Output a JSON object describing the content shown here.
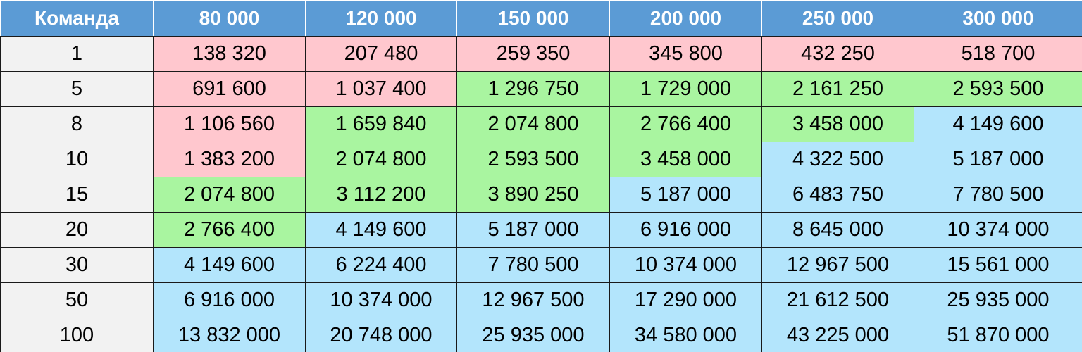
{
  "header": {
    "label": "Команда",
    "columns": [
      "80 000",
      "120 000",
      "150 000",
      "200 000",
      "250 000",
      "300 000"
    ]
  },
  "colors": {
    "header": "#5b9bd5",
    "row_label": "#f2f2f2",
    "red": "#ffc7ce",
    "green": "#a9f5a0",
    "blue": "#b3e5fc"
  },
  "rows": [
    {
      "label": "1",
      "cells": [
        "138 320",
        "207 480",
        "259 350",
        "345 800",
        "432 250",
        "518 700"
      ],
      "bands": [
        "red",
        "red",
        "red",
        "red",
        "red",
        "red"
      ]
    },
    {
      "label": "5",
      "cells": [
        "691 600",
        "1 037 400",
        "1 296 750",
        "1 729 000",
        "2 161 250",
        "2 593 500"
      ],
      "bands": [
        "red",
        "red",
        "green",
        "green",
        "green",
        "green"
      ]
    },
    {
      "label": "8",
      "cells": [
        "1 106 560",
        "1 659 840",
        "2 074 800",
        "2 766 400",
        "3 458 000",
        "4 149 600"
      ],
      "bands": [
        "red",
        "green",
        "green",
        "green",
        "green",
        "blue"
      ]
    },
    {
      "label": "10",
      "cells": [
        "1 383 200",
        "2 074 800",
        "2 593 500",
        "3 458 000",
        "4 322 500",
        "5 187 000"
      ],
      "bands": [
        "red",
        "green",
        "green",
        "green",
        "blue",
        "blue"
      ]
    },
    {
      "label": "15",
      "cells": [
        "2 074 800",
        "3 112 200",
        "3 890 250",
        "5 187 000",
        "6 483 750",
        "7 780 500"
      ],
      "bands": [
        "green",
        "green",
        "green",
        "blue",
        "blue",
        "blue"
      ]
    },
    {
      "label": "20",
      "cells": [
        "2 766 400",
        "4 149 600",
        "5 187 000",
        "6 916 000",
        "8 645 000",
        "10 374 000"
      ],
      "bands": [
        "green",
        "blue",
        "blue",
        "blue",
        "blue",
        "blue"
      ]
    },
    {
      "label": "30",
      "cells": [
        "4 149 600",
        "6 224 400",
        "7 780 500",
        "10 374 000",
        "12 967 500",
        "15 561 000"
      ],
      "bands": [
        "blue",
        "blue",
        "blue",
        "blue",
        "blue",
        "blue"
      ]
    },
    {
      "label": "50",
      "cells": [
        "6 916 000",
        "10 374 000",
        "12 967 500",
        "17 290 000",
        "21 612 500",
        "25 935 000"
      ],
      "bands": [
        "blue",
        "blue",
        "blue",
        "blue",
        "blue",
        "blue"
      ]
    },
    {
      "label": "100",
      "cells": [
        "13 832 000",
        "20 748 000",
        "25 935 000",
        "34 580 000",
        "43 225 000",
        "51 870 000"
      ],
      "bands": [
        "blue",
        "blue",
        "blue",
        "blue",
        "blue",
        "blue"
      ]
    }
  ]
}
